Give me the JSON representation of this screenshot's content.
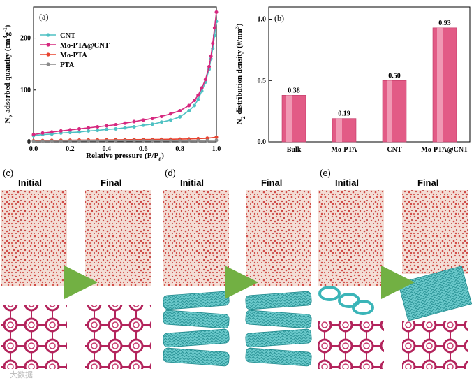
{
  "chart_data": [
    {
      "panel": "(a)",
      "type": "line",
      "xlabel": "Relative pressure (P/P",
      "xlabel_sub": "0",
      "xlabel_end": ")",
      "ylabel_pre": "N",
      "ylabel_sub": "2",
      "ylabel_mid": " adsorbed quantity (cm",
      "ylabel_sup": "3",
      "ylabel_g": "g",
      "ylabel_sup2": "-1",
      "ylabel_end": ")",
      "xlim": [
        0.0,
        1.0
      ],
      "ylim": [
        0,
        260
      ],
      "xticks": [
        "0.0",
        "0.2",
        "0.4",
        "0.6",
        "0.8",
        "1.0"
      ],
      "xtick_values": [
        0.0,
        0.2,
        0.4,
        0.6,
        0.8,
        1.0
      ],
      "yticks": [
        "0",
        "100",
        "200"
      ],
      "ytick_values": [
        0,
        100,
        200
      ],
      "legend_position": "top-left",
      "series": [
        {
          "name": "CNT",
          "color": "#4fc1c3",
          "x": [
            0.0,
            0.05,
            0.1,
            0.15,
            0.2,
            0.25,
            0.3,
            0.35,
            0.4,
            0.45,
            0.5,
            0.55,
            0.6,
            0.65,
            0.7,
            0.75,
            0.8,
            0.85,
            0.88,
            0.9,
            0.92,
            0.94,
            0.96,
            0.97,
            0.98,
            0.99,
            1.0
          ],
          "values": [
            12,
            14,
            15,
            17,
            18,
            19,
            21,
            22,
            24,
            25,
            27,
            29,
            32,
            34,
            38,
            42,
            48,
            60,
            70,
            82,
            98,
            115,
            140,
            160,
            180,
            205,
            232
          ]
        },
        {
          "name": "Mo-PTA@CNT",
          "color": "#d6287f",
          "x": [
            0.0,
            0.05,
            0.1,
            0.15,
            0.2,
            0.25,
            0.3,
            0.35,
            0.4,
            0.45,
            0.5,
            0.55,
            0.6,
            0.65,
            0.7,
            0.75,
            0.8,
            0.85,
            0.88,
            0.9,
            0.92,
            0.94,
            0.96,
            0.97,
            0.98,
            0.99,
            1.0
          ],
          "values": [
            14,
            17,
            19,
            21,
            23,
            25,
            27,
            29,
            31,
            33,
            36,
            39,
            42,
            45,
            49,
            54,
            60,
            70,
            80,
            90,
            104,
            120,
            145,
            165,
            190,
            220,
            250
          ]
        },
        {
          "name": "Mo-PTA",
          "color": "#e8432f",
          "x": [
            0.0,
            0.05,
            0.1,
            0.15,
            0.2,
            0.25,
            0.3,
            0.35,
            0.4,
            0.45,
            0.5,
            0.55,
            0.6,
            0.65,
            0.7,
            0.75,
            0.8,
            0.85,
            0.9,
            0.95,
            1.0
          ],
          "values": [
            2,
            2.5,
            2.8,
            3,
            3.2,
            3.4,
            3.5,
            3.7,
            3.8,
            4,
            4.1,
            4.3,
            4.5,
            4.6,
            4.8,
            5,
            5.3,
            5.6,
            6.2,
            7,
            9
          ]
        },
        {
          "name": "PTA",
          "color": "#8a8a8a",
          "x": [
            0.0,
            0.05,
            0.1,
            0.15,
            0.2,
            0.25,
            0.3,
            0.35,
            0.4,
            0.45,
            0.5,
            0.55,
            0.6,
            0.65,
            0.7,
            0.75,
            0.8,
            0.85,
            0.9,
            0.95,
            1.0
          ],
          "values": [
            1,
            1.2,
            1.3,
            1.4,
            1.5,
            1.5,
            1.6,
            1.6,
            1.7,
            1.7,
            1.8,
            1.8,
            1.9,
            1.9,
            2,
            2,
            2.1,
            2.2,
            2.4,
            2.6,
            3
          ]
        }
      ]
    },
    {
      "panel": "(b)",
      "type": "bar",
      "ylabel_pre": "N",
      "ylabel_sub": "2",
      "ylabel_mid": " distribution density (#/nm",
      "ylabel_sup": "3",
      "ylabel_end": ")",
      "categories": [
        "Bulk",
        "Mo-PTA",
        "CNT",
        "Mo-PTA@CNT"
      ],
      "values": [
        0.38,
        0.19,
        0.5,
        0.93
      ],
      "value_labels": [
        "0.38",
        "0.19",
        "0.50",
        "0.93"
      ],
      "ylim": [
        0,
        1.1
      ],
      "yticks": [
        "0.0",
        "0.5",
        "1.0"
      ],
      "ytick_values": [
        0.0,
        0.5,
        1.0
      ],
      "bar_color": "#e25b86"
    }
  ],
  "snapshots": {
    "panels": [
      {
        "label": "(c)",
        "initial": "Initial",
        "final": "Final",
        "lower": "framework"
      },
      {
        "label": "(d)",
        "initial": "Initial",
        "final": "Final",
        "lower": "nanotubes"
      },
      {
        "label": "(e)",
        "initial": "Initial",
        "final": "Final",
        "lower": "mixed"
      }
    ],
    "arrow_color": "#72b043",
    "water_color": "#d04a46",
    "framework_color": "#b3245c",
    "tube_color": "#3bb5b8"
  },
  "watermark": "大数据"
}
